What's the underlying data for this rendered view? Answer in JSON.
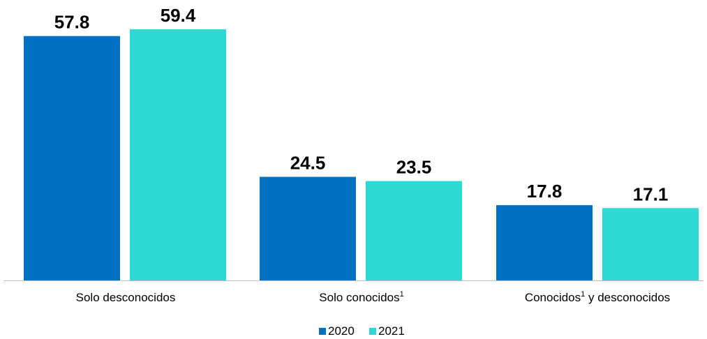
{
  "chart_data": {
    "type": "bar",
    "title": "",
    "xlabel": "",
    "ylabel": "",
    "categories": [
      "Solo desconocidos",
      "Solo conocidos",
      "Conocidos y desconocidos"
    ],
    "category_labels": [
      {
        "main": "Solo desconocidos",
        "sup": "",
        "rest": ""
      },
      {
        "main": "Solo conocidos",
        "sup": "1",
        "rest": ""
      },
      {
        "main": "Conocidos",
        "sup": "1",
        "rest": " y desconocidos"
      }
    ],
    "series": [
      {
        "name": "2020",
        "values": [
          57.8,
          24.5,
          17.8
        ],
        "color": "#0070C0"
      },
      {
        "name": "2021",
        "values": [
          59.4,
          23.5,
          17.1
        ],
        "color": "#2ED9D3"
      }
    ],
    "ylim": [
      0,
      59.4
    ],
    "grid": false,
    "legend_position": "bottom-center",
    "value_labels": true,
    "axis_line_color": "#BFBFBF"
  }
}
